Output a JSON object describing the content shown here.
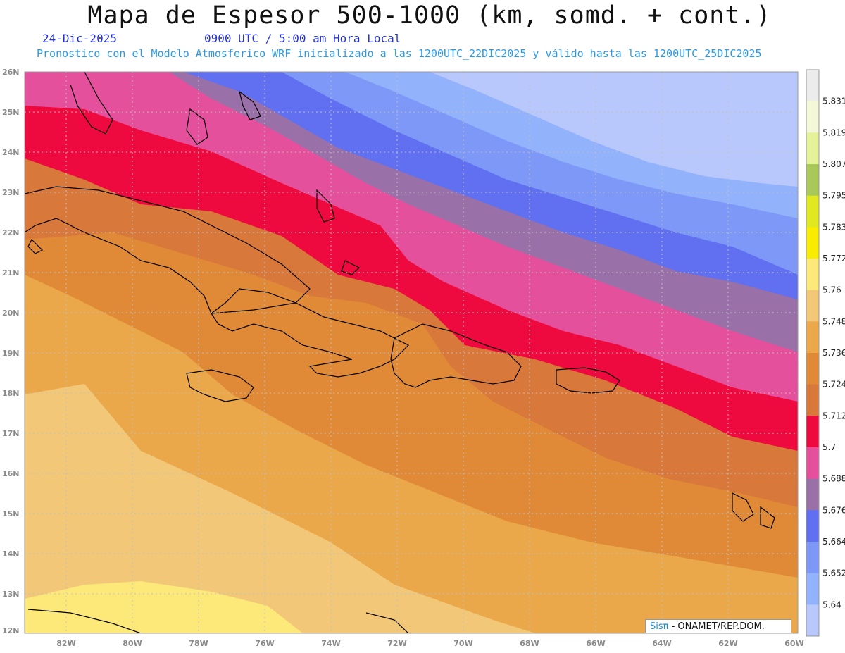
{
  "header": {
    "title": "Mapa de Espesor 500-1000 (km, somd. + cont.)",
    "date": "24-Dic-2025",
    "time": "0900 UTC / 5:00 am Hora Local",
    "subtitle": "Pronostico con el Modelo Atmosferico WRF inicializado a las 1200UTC_22DIC2025 y válido hasta las  1200UTC_25DIC2025"
  },
  "axes": {
    "lat_labels": [
      "26N",
      "25N",
      "24N",
      "23N",
      "22N",
      "21N",
      "20N",
      "19N",
      "18N",
      "17N",
      "16N",
      "15N",
      "14N",
      "13N",
      "12N"
    ],
    "lon_labels": [
      "82W",
      "80W",
      "78W",
      "76W",
      "74W",
      "72W",
      "70W",
      "68W",
      "66W",
      "64W",
      "62W",
      "60W"
    ]
  },
  "colorbar": {
    "labels": [
      "5.831",
      "5.819",
      "5.807",
      "5.795",
      "5.783",
      "5.772",
      "5.76",
      "5.748",
      "5.736",
      "5.724",
      "5.712",
      "5.7",
      "5.688",
      "5.676",
      "5.664",
      "5.652",
      "5.64"
    ],
    "colors": [
      "#ececec",
      "#f4f7d8",
      "#e6f29a",
      "#a8c85a",
      "#e0e820",
      "#f8ec00",
      "#fde87a",
      "#f2c878",
      "#eaa84a",
      "#e08a38",
      "#d8783a",
      "#ee0a3e",
      "#e4509c",
      "#9a70a8",
      "#6070f0",
      "#7e98f8",
      "#92b2fc",
      "#b8c8fc"
    ]
  },
  "credit": {
    "brand": "Sisπ",
    "text": "- ONAMET/REP.DOM."
  }
}
